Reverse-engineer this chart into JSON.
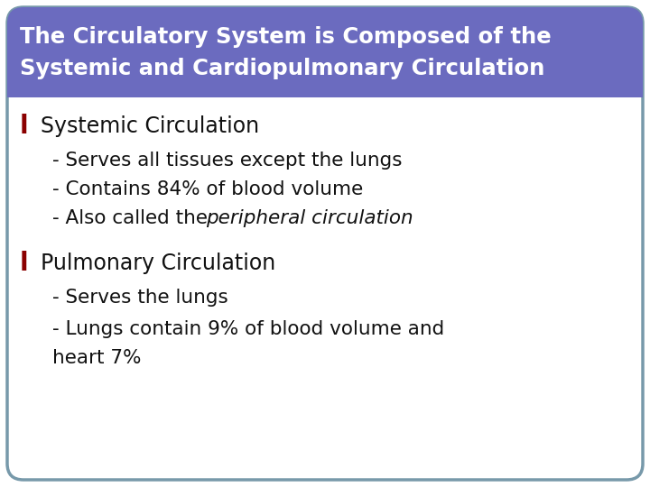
{
  "title_line1": "The Circulatory System is Composed of the",
  "title_line2": "Systemic and Cardiopulmonary Circulation",
  "title_bg_color": "#6b6bbf",
  "title_text_color": "#ffffff",
  "body_bg_color": "#ffffff",
  "border_color": "#7799aa",
  "bullet_color": "#8b0000",
  "text_color": "#111111",
  "section1_header": "Systemic Circulation",
  "section2_header": "Pulmonary Circulation",
  "fig_width": 7.2,
  "fig_height": 5.4,
  "dpi": 100
}
